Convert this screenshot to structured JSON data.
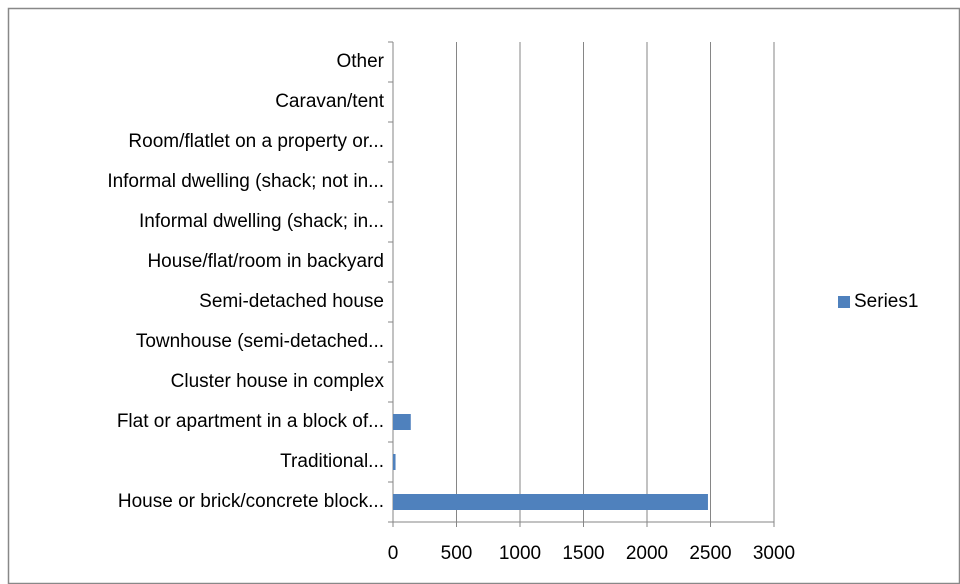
{
  "chart_data": {
    "type": "barh",
    "categories": [
      "House or brick/concrete block...",
      "Traditional...",
      "Flat or apartment in a block of...",
      "Cluster house in complex",
      "Townhouse (semi-detached...",
      "Semi-detached house",
      "House/flat/room in backyard",
      "Informal dwelling (shack; in...",
      "Informal dwelling (shack; not in...",
      "Room/flatlet on a property or...",
      "Caravan/tent",
      "Other"
    ],
    "series": [
      {
        "name": "Series1",
        "color": "#4f81bd",
        "values": [
          2480,
          20,
          140,
          0,
          0,
          0,
          0,
          0,
          0,
          0,
          0,
          0
        ]
      }
    ],
    "xlim": [
      0,
      3000
    ],
    "xticks": [
      0,
      500,
      1000,
      1500,
      2000,
      2500,
      3000
    ],
    "grid": true,
    "legend": "right"
  }
}
